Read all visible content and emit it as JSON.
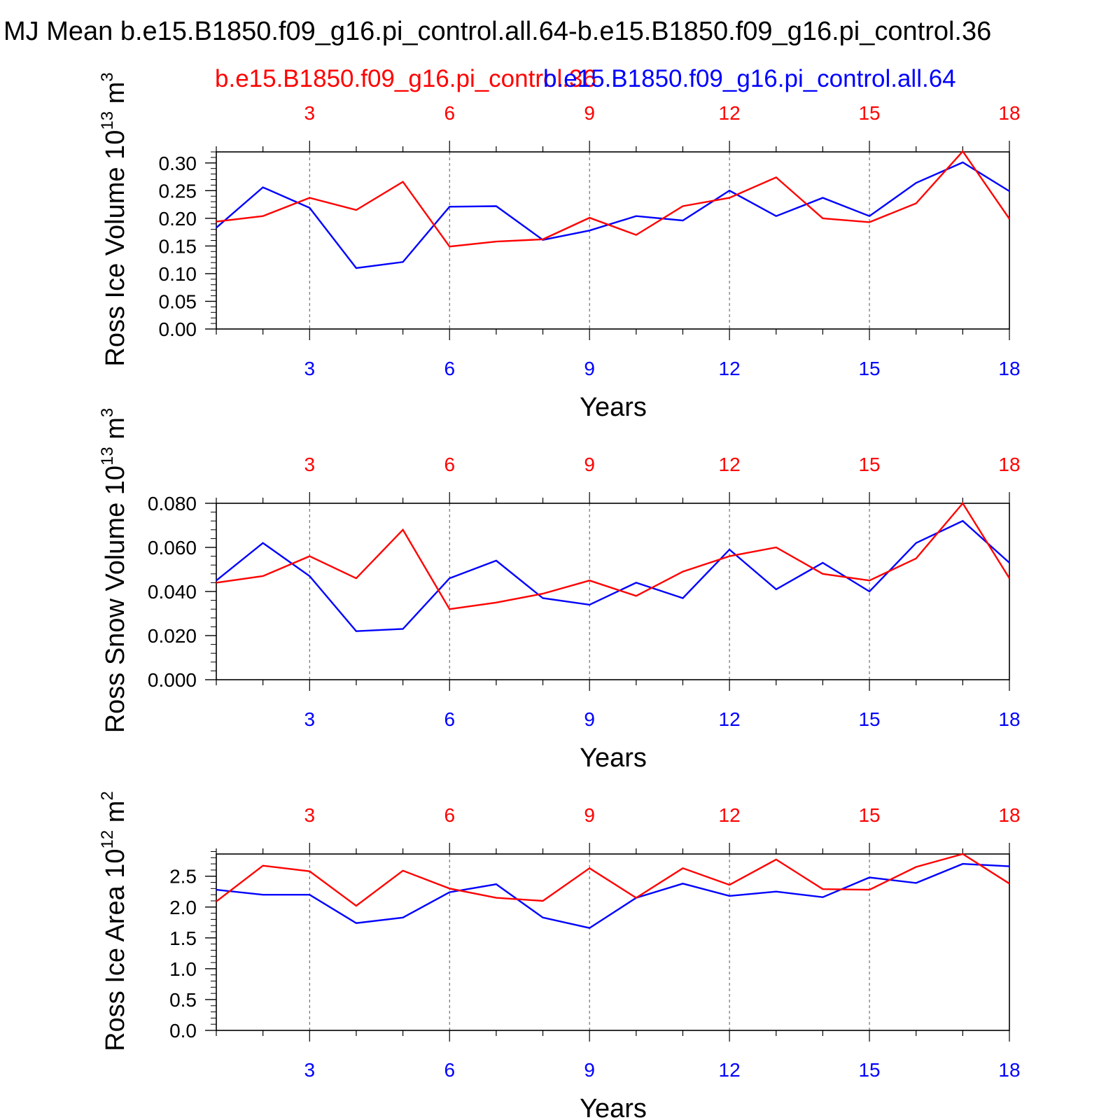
{
  "title": "MJ Mean b.e15.B1850.f09_g16.pi_control.all.64-b.e15.B1850.f09_g16.pi_control.36",
  "legend": {
    "red_label": "b.e15.B1850.f09_g16.pi_control.36",
    "blue_label": "b.e15.B1850.f09_g16.pi_control.all.64"
  },
  "colors": {
    "red": "#ff0000",
    "blue": "#0000ff",
    "axis": "#000000",
    "grid": "#555555"
  },
  "chart_data": [
    {
      "type": "line",
      "ylabel": "Ross Ice Volume 10",
      "ylabel_exp": "13",
      "ylabel_unit": "m",
      "ylabel_unit_exp": "3",
      "xlabel": "Years",
      "xlim": [
        1,
        18
      ],
      "ylim": [
        0,
        0.32
      ],
      "yticks": [
        0,
        0.05,
        0.1,
        0.15,
        0.2,
        0.25,
        0.3
      ],
      "yticklabels": [
        "0.00",
        "0.05",
        "0.10",
        "0.15",
        "0.20",
        "0.25",
        "0.30"
      ],
      "yminor": 0.01,
      "xticks": [
        3,
        6,
        9,
        12,
        15,
        18
      ],
      "xticklabels": [
        "3",
        "6",
        "9",
        "12",
        "15",
        "18"
      ],
      "grid_x": true,
      "x": [
        1,
        2,
        3,
        4,
        5,
        6,
        7,
        8,
        9,
        10,
        11,
        12,
        13,
        14,
        15,
        16,
        17,
        18
      ],
      "series": [
        {
          "name": "b.e15.B1850.f09_g16.pi_control.all.64",
          "color": "#0000ff",
          "values": [
            0.183,
            0.256,
            0.219,
            0.11,
            0.121,
            0.221,
            0.222,
            0.161,
            0.178,
            0.204,
            0.196,
            0.25,
            0.204,
            0.237,
            0.204,
            0.264,
            0.301,
            0.249
          ]
        },
        {
          "name": "b.e15.B1850.f09_g16.pi_control.36",
          "color": "#ff0000",
          "values": [
            0.194,
            0.204,
            0.237,
            0.215,
            0.266,
            0.149,
            0.158,
            0.162,
            0.201,
            0.17,
            0.222,
            0.237,
            0.274,
            0.2,
            0.193,
            0.227,
            0.321,
            0.199
          ]
        }
      ]
    },
    {
      "type": "line",
      "ylabel": "Ross Snow Volume 10",
      "ylabel_exp": "13",
      "ylabel_unit": "m",
      "ylabel_unit_exp": "3",
      "xlabel": "Years",
      "xlim": [
        1,
        18
      ],
      "ylim": [
        0,
        0.08
      ],
      "yticks": [
        0,
        0.02,
        0.04,
        0.06,
        0.08
      ],
      "yticklabels": [
        "0.000",
        "0.020",
        "0.040",
        "0.060",
        "0.080"
      ],
      "yminor": 0.004,
      "xticks": [
        3,
        6,
        9,
        12,
        15,
        18
      ],
      "xticklabels": [
        "3",
        "6",
        "9",
        "12",
        "15",
        "18"
      ],
      "grid_x": true,
      "x": [
        1,
        2,
        3,
        4,
        5,
        6,
        7,
        8,
        9,
        10,
        11,
        12,
        13,
        14,
        15,
        16,
        17,
        18
      ],
      "series": [
        {
          "name": "b.e15.B1850.f09_g16.pi_control.all.64",
          "color": "#0000ff",
          "values": [
            0.045,
            0.062,
            0.047,
            0.022,
            0.023,
            0.046,
            0.054,
            0.037,
            0.034,
            0.044,
            0.037,
            0.059,
            0.041,
            0.053,
            0.04,
            0.062,
            0.072,
            0.053
          ]
        },
        {
          "name": "b.e15.B1850.f09_g16.pi_control.36",
          "color": "#ff0000",
          "values": [
            0.044,
            0.047,
            0.056,
            0.046,
            0.068,
            0.032,
            0.035,
            0.039,
            0.045,
            0.038,
            0.049,
            0.056,
            0.06,
            0.048,
            0.045,
            0.055,
            0.08,
            0.046
          ]
        }
      ]
    },
    {
      "type": "line",
      "ylabel": "Ross Ice Area 10",
      "ylabel_exp": "12",
      "ylabel_unit": "m",
      "ylabel_unit_exp": "2",
      "xlabel": "Years",
      "xlim": [
        1,
        18
      ],
      "ylim": [
        0,
        2.86
      ],
      "yticks": [
        0,
        0.5,
        1.0,
        1.5,
        2.0,
        2.5
      ],
      "yticklabels": [
        "0.0",
        "0.5",
        "1.0",
        "1.5",
        "2.0",
        "2.5"
      ],
      "yminor": 0.1,
      "xticks": [
        3,
        6,
        9,
        12,
        15,
        18
      ],
      "xticklabels": [
        "3",
        "6",
        "9",
        "12",
        "15",
        "18"
      ],
      "grid_x": true,
      "x": [
        1,
        2,
        3,
        4,
        5,
        6,
        7,
        8,
        9,
        10,
        11,
        12,
        13,
        14,
        15,
        16,
        17,
        18
      ],
      "series": [
        {
          "name": "b.e15.B1850.f09_g16.pi_control.all.64",
          "color": "#0000ff",
          "values": [
            2.28,
            2.2,
            2.2,
            1.74,
            1.83,
            2.24,
            2.37,
            1.83,
            1.66,
            2.15,
            2.38,
            2.18,
            2.25,
            2.16,
            2.48,
            2.39,
            2.7,
            2.66
          ]
        },
        {
          "name": "b.e15.B1850.f09_g16.pi_control.36",
          "color": "#ff0000",
          "values": [
            2.09,
            2.67,
            2.58,
            2.02,
            2.59,
            2.3,
            2.15,
            2.1,
            2.63,
            2.15,
            2.63,
            2.36,
            2.77,
            2.29,
            2.28,
            2.65,
            2.86,
            2.38
          ]
        }
      ]
    }
  ]
}
